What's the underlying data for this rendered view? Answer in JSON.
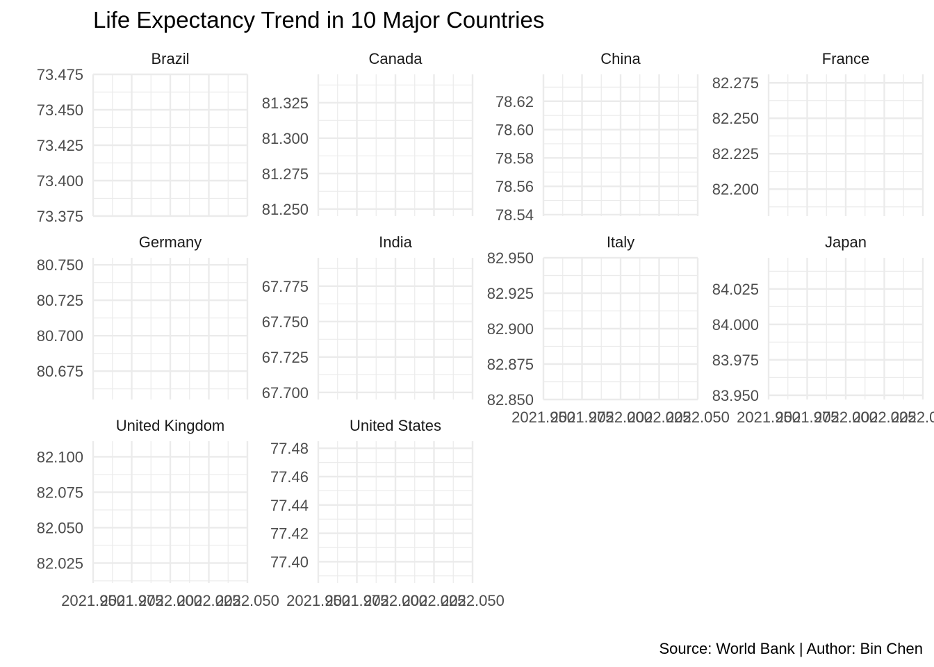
{
  "chart_data": {
    "type": "line",
    "title": "Life Expectancy Trend in 10 Major Countries",
    "caption": "Source: World Bank | Author: Bin Chen",
    "xlabel": "",
    "ylabel": "",
    "x_ticks": [
      "2021.950",
      "2021.975",
      "2022.000",
      "2022.025",
      "2022.050"
    ],
    "xlim": [
      2021.95,
      2022.05
    ],
    "grid": true,
    "facets": [
      {
        "name": "Brazil",
        "ylim": [
          73.375,
          73.475
        ],
        "y_ticks": [
          "73.375",
          "73.400",
          "73.425",
          "73.450",
          "73.475"
        ],
        "show_x_ticks": false
      },
      {
        "name": "Canada",
        "ylim": [
          81.245,
          81.345
        ],
        "y_ticks": [
          "81.250",
          "81.275",
          "81.300",
          "81.325"
        ],
        "show_x_ticks": false
      },
      {
        "name": "China",
        "ylim": [
          78.539,
          78.639
        ],
        "y_ticks": [
          "78.54",
          "78.56",
          "78.58",
          "78.60",
          "78.62"
        ],
        "show_x_ticks": false
      },
      {
        "name": "France",
        "ylim": [
          82.181,
          82.281
        ],
        "y_ticks": [
          "82.200",
          "82.225",
          "82.250",
          "82.275"
        ],
        "show_x_ticks": false
      },
      {
        "name": "Germany",
        "ylim": [
          80.655,
          80.755
        ],
        "y_ticks": [
          "80.675",
          "80.700",
          "80.725",
          "80.750"
        ],
        "show_x_ticks": false
      },
      {
        "name": "India",
        "ylim": [
          67.695,
          67.795
        ],
        "y_ticks": [
          "67.700",
          "67.725",
          "67.750",
          "67.775"
        ],
        "show_x_ticks": false
      },
      {
        "name": "Italy",
        "ylim": [
          82.85,
          82.95
        ],
        "y_ticks": [
          "82.850",
          "82.875",
          "82.900",
          "82.925",
          "82.950"
        ],
        "show_x_ticks": true
      },
      {
        "name": "Japan",
        "ylim": [
          83.947,
          84.047
        ],
        "y_ticks": [
          "83.950",
          "83.975",
          "84.000",
          "84.025"
        ],
        "show_x_ticks": true
      },
      {
        "name": "United Kingdom",
        "ylim": [
          82.011,
          82.111
        ],
        "y_ticks": [
          "82.025",
          "82.050",
          "82.075",
          "82.100"
        ],
        "show_x_ticks": true
      },
      {
        "name": "United States",
        "ylim": [
          77.385,
          77.485
        ],
        "y_ticks": [
          "77.40",
          "77.42",
          "77.44",
          "77.46",
          "77.48"
        ],
        "show_x_ticks": true
      }
    ]
  }
}
